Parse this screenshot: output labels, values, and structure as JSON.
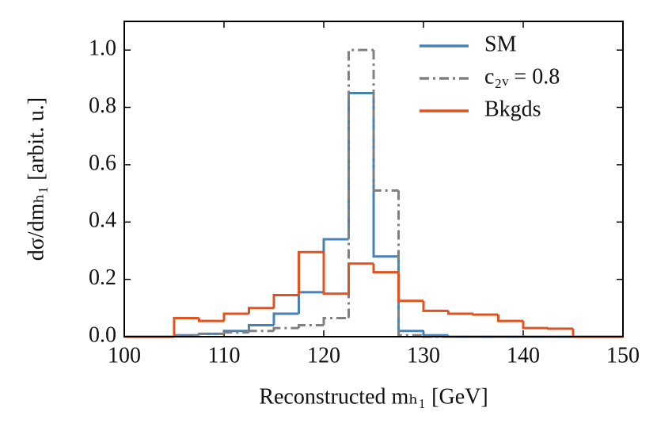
{
  "chart_data": {
    "type": "histogram",
    "xlabel": "Reconstructed mₕ₁ [GeV]",
    "ylabel": "dσ/dmₕ₁ [arbit. u.]",
    "bins": [
      100,
      102.5,
      105,
      107.5,
      110,
      112.5,
      115,
      117.5,
      120,
      122.5,
      125,
      127.5,
      130,
      132.5,
      135,
      137.5,
      140,
      142.5,
      145,
      147.5,
      150
    ],
    "series": [
      {
        "name": "SM",
        "color": "#4682b4",
        "dash": "solid",
        "values": [
          0,
          0,
          0.005,
          0.01,
          0.02,
          0.04,
          0.08,
          0.155,
          0.34,
          0.85,
          0.28,
          0.02,
          0.005,
          0,
          0,
          0,
          0,
          0,
          0,
          0
        ]
      },
      {
        "name": "c₂ᵥ = 0.8",
        "color": "#808080",
        "dash": "dashdot",
        "values": [
          0,
          0,
          0.005,
          0.01,
          0.015,
          0.02,
          0.03,
          0.04,
          0.065,
          1.0,
          0.51,
          0.005,
          0,
          0,
          0,
          0,
          0,
          0,
          0,
          0
        ]
      },
      {
        "name": "Bkgds",
        "color": "#e0531f",
        "dash": "solid",
        "values": [
          0,
          0,
          0.065,
          0.055,
          0.08,
          0.1,
          0.145,
          0.295,
          0.15,
          0.255,
          0.225,
          0.125,
          0.09,
          0.08,
          0.077,
          0.055,
          0.03,
          0.028,
          0,
          0
        ]
      }
    ],
    "xlim": [
      100,
      150
    ],
    "xticks": [
      100,
      110,
      120,
      130,
      140,
      150
    ],
    "ylim": [
      0,
      1.1
    ],
    "yticks": [
      {
        "value": 0,
        "label": "0.0"
      },
      0.2,
      0.4,
      0.6,
      0.8,
      {
        "value": 1,
        "label": "1.0"
      }
    ],
    "legend": "upper right",
    "grid": false
  }
}
